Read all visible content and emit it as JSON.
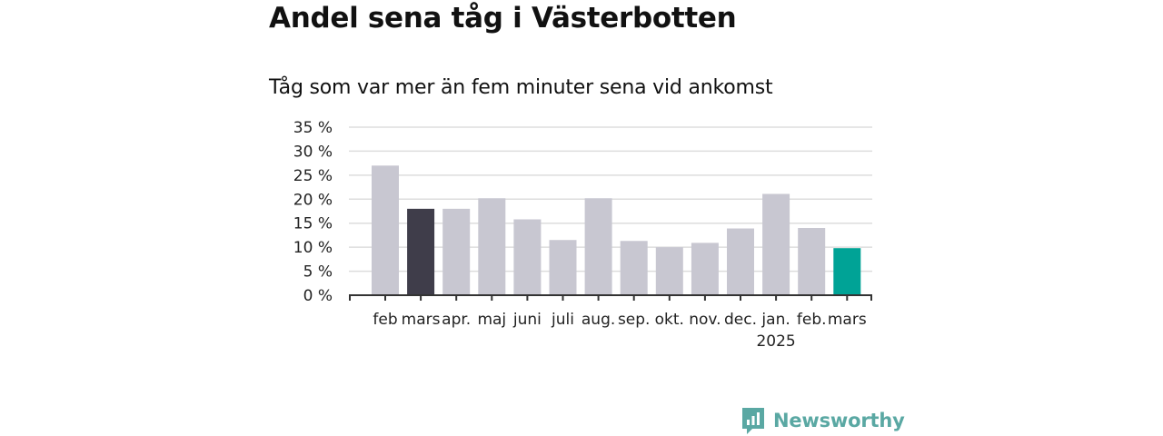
{
  "title": "Andel sena tåg i Västerbotten",
  "subtitle": "Tåg som var mer än fem minuter sena vid ankomst",
  "brand": "Newsworthy",
  "colors": {
    "default": "#c8c7d1",
    "previous_year": "#3f3d4a",
    "highlight": "#00a396",
    "grid": "#dddddd",
    "axis": "#333333"
  },
  "chart_data": {
    "type": "bar",
    "categories": [
      "feb",
      "mars",
      "apr.",
      "maj",
      "juni",
      "juli",
      "aug.",
      "sep.",
      "okt.",
      "nov.",
      "dec.",
      "jan.",
      "feb.",
      "mars"
    ],
    "year_label": {
      "text": "2025",
      "under_index": 11
    },
    "values": [
      27,
      18,
      18,
      20.2,
      15.8,
      11.5,
      20.2,
      11.3,
      10,
      10.9,
      13.9,
      21.1,
      14,
      9.8
    ],
    "bar_colors": [
      "default",
      "previous_year",
      "default",
      "default",
      "default",
      "default",
      "default",
      "default",
      "default",
      "default",
      "default",
      "default",
      "default",
      "highlight"
    ],
    "ylim": [
      0,
      35
    ],
    "yticks": [
      0,
      5,
      10,
      15,
      20,
      25,
      30,
      35
    ],
    "ytick_labels": [
      "0 %",
      "5 %",
      "10 %",
      "15 %",
      "20 %",
      "25 %",
      "30 %",
      "35 %"
    ],
    "grid": true,
    "xlabel": "",
    "ylabel": ""
  }
}
